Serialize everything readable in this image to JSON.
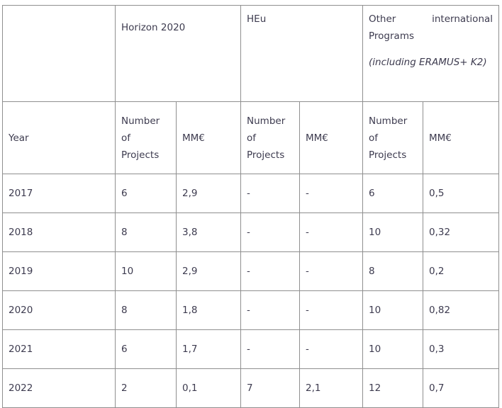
{
  "header": {
    "group1": "Horizon 2020",
    "group2": "HEu",
    "group3_word1": "Other",
    "group3_word2": "international",
    "group3_line2": "Programs",
    "group3_note": "(including ERAMUS+ K2)"
  },
  "subheader": {
    "year": "Year",
    "num_line1": "Number",
    "num_line2": "of",
    "num_line3": "Projects",
    "mm": "MM€"
  },
  "rows": [
    {
      "year": "2017",
      "h_num": "6",
      "h_mm": "2,9",
      "heu_num": "-",
      "heu_mm": "-",
      "oth_num": "6",
      "oth_mm": "0,5"
    },
    {
      "year": "2018",
      "h_num": "8",
      "h_mm": "3,8",
      "heu_num": "-",
      "heu_mm": "-",
      "oth_num": "10",
      "oth_mm": "0,32"
    },
    {
      "year": "2019",
      "h_num": "10",
      "h_mm": "2,9",
      "heu_num": "-",
      "heu_mm": "-",
      "oth_num": "8",
      "oth_mm": "0,2"
    },
    {
      "year": "2020",
      "h_num": "8",
      "h_mm": "1,8",
      "heu_num": "-",
      "heu_mm": "-",
      "oth_num": "10",
      "oth_mm": "0,82"
    },
    {
      "year": "2021",
      "h_num": "6",
      "h_mm": "1,7",
      "heu_num": "-",
      "heu_mm": "-",
      "oth_num": "10",
      "oth_mm": "0,3"
    },
    {
      "year": "2022",
      "h_num": "2",
      "h_mm": "0,1",
      "heu_num": "7",
      "heu_mm": "2,1",
      "oth_num": "12",
      "oth_mm": "0,7"
    }
  ]
}
